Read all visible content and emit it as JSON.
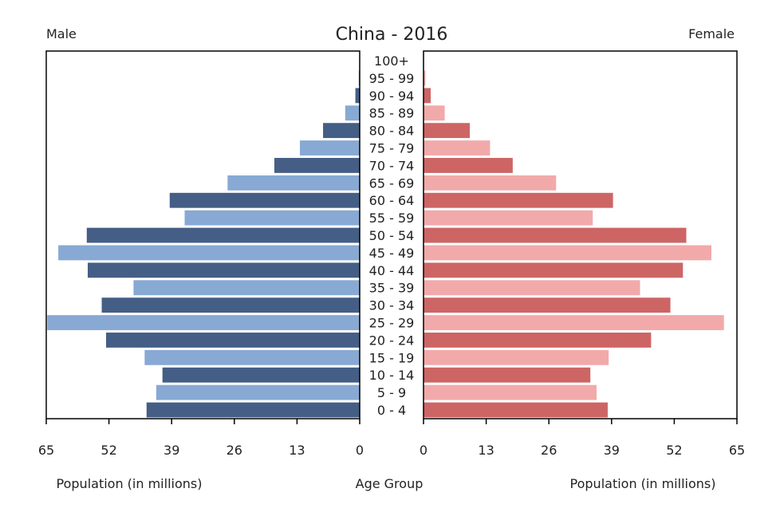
{
  "chart_data": {
    "type": "bar",
    "title": "China - 2016",
    "left_label": "Male",
    "right_label": "Female",
    "xlabel_left": "Population (in millions)",
    "xlabel_center": "Age Group",
    "xlabel_right": "Population (in millions)",
    "xlim": [
      0,
      65
    ],
    "ticks_left": [
      "65",
      "52",
      "39",
      "26",
      "13",
      "0"
    ],
    "ticks_right": [
      "0",
      "13",
      "26",
      "39",
      "52",
      "65"
    ],
    "categories": [
      "0 - 4",
      "5 - 9",
      "10 - 14",
      "15 - 19",
      "20 - 24",
      "25 - 29",
      "30 - 34",
      "35 - 39",
      "40 - 44",
      "45 - 49",
      "50 - 54",
      "55 - 59",
      "60 - 64",
      "65 - 69",
      "70 - 74",
      "75 - 79",
      "80 - 84",
      "85 - 89",
      "90 - 94",
      "95 - 99",
      "100+"
    ],
    "series": [
      {
        "name": "Male",
        "values": [
          44.2,
          42.2,
          40.9,
          44.6,
          52.6,
          64.8,
          53.5,
          46.9,
          56.4,
          62.5,
          56.6,
          36.3,
          39.4,
          27.4,
          17.7,
          12.4,
          7.6,
          3.0,
          0.9,
          0.2,
          0.05
        ]
      },
      {
        "name": "Female",
        "values": [
          38.2,
          35.9,
          34.6,
          38.4,
          47.2,
          62.3,
          51.2,
          44.9,
          53.8,
          59.7,
          54.5,
          35.1,
          39.3,
          27.5,
          18.5,
          13.8,
          9.6,
          4.4,
          1.5,
          0.4,
          0.1
        ]
      }
    ],
    "colors": {
      "male_dark": "#445e86",
      "male_light": "#87a9d3",
      "female_dark": "#cd6565",
      "female_light": "#f2a9aa",
      "axis": "#000000"
    },
    "grid": false
  }
}
